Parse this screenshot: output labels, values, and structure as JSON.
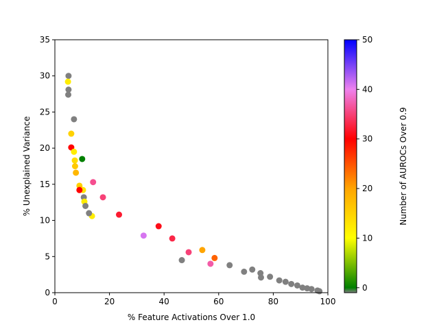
{
  "chart_data": {
    "type": "scatter",
    "xlabel": "% Feature Activations Over 1.0",
    "ylabel": "% Unexplained Variance",
    "xlim": [
      0,
      100
    ],
    "ylim": [
      0,
      35
    ],
    "xticks": [
      "0",
      "20",
      "40",
      "60",
      "80",
      "100"
    ],
    "yticks": [
      "0",
      "5",
      "10",
      "15",
      "20",
      "25",
      "30",
      "35"
    ],
    "grid": false,
    "colorbar": {
      "label": "Number of AUROCs Over 0.9",
      "range": [
        -1,
        50
      ],
      "ticks": [
        "0",
        "10",
        "20",
        "30",
        "40",
        "50"
      ],
      "stops": [
        {
          "value": -1,
          "color": "#808080"
        },
        {
          "value": 0,
          "color": "#008000"
        },
        {
          "value": 10,
          "color": "#ffff00"
        },
        {
          "value": 20,
          "color": "#ffa500"
        },
        {
          "value": 30,
          "color": "#ff0000"
        },
        {
          "value": 40,
          "color": "#ee82ee"
        },
        {
          "value": 50,
          "color": "#0000ff"
        }
      ]
    },
    "points": [
      {
        "x": 5.0,
        "y": 30.0,
        "c": -1
      },
      {
        "x": 5.0,
        "y": 28.1,
        "c": -1
      },
      {
        "x": 4.9,
        "y": 27.4,
        "c": -1
      },
      {
        "x": 4.8,
        "y": 29.2,
        "c": 12
      },
      {
        "x": 7.0,
        "y": 24.0,
        "c": -1
      },
      {
        "x": 6.0,
        "y": 22.0,
        "c": 15
      },
      {
        "x": 6.0,
        "y": 20.1,
        "c": 30
      },
      {
        "x": 7.0,
        "y": 19.5,
        "c": 12
      },
      {
        "x": 7.3,
        "y": 18.3,
        "c": 14
      },
      {
        "x": 10.0,
        "y": 18.5,
        "c": 0
      },
      {
        "x": 7.4,
        "y": 17.5,
        "c": 16
      },
      {
        "x": 7.7,
        "y": 16.6,
        "c": 18
      },
      {
        "x": 14.0,
        "y": 15.3,
        "c": 36
      },
      {
        "x": 9.0,
        "y": 14.8,
        "c": 15
      },
      {
        "x": 9.2,
        "y": 14.4,
        "c": 17
      },
      {
        "x": 10.3,
        "y": 14.2,
        "c": 13
      },
      {
        "x": 9.0,
        "y": 14.2,
        "c": 30
      },
      {
        "x": 17.6,
        "y": 13.2,
        "c": 35
      },
      {
        "x": 10.6,
        "y": 13.2,
        "c": -1
      },
      {
        "x": 10.8,
        "y": 12.6,
        "c": 12
      },
      {
        "x": 11.2,
        "y": 12.0,
        "c": -1
      },
      {
        "x": 13.6,
        "y": 10.6,
        "c": 12
      },
      {
        "x": 12.5,
        "y": 11.0,
        "c": -1
      },
      {
        "x": 23.5,
        "y": 10.8,
        "c": 32
      },
      {
        "x": 38.0,
        "y": 9.2,
        "c": 31
      },
      {
        "x": 32.5,
        "y": 7.9,
        "c": 41
      },
      {
        "x": 43.0,
        "y": 7.5,
        "c": 33
      },
      {
        "x": 49.0,
        "y": 5.6,
        "c": 35
      },
      {
        "x": 54.0,
        "y": 5.9,
        "c": 20
      },
      {
        "x": 58.5,
        "y": 4.8,
        "c": 24
      },
      {
        "x": 46.5,
        "y": 4.5,
        "c": -1
      },
      {
        "x": 57.0,
        "y": 4.0,
        "c": 37
      },
      {
        "x": 64.0,
        "y": 3.8,
        "c": -1
      },
      {
        "x": 69.3,
        "y": 2.9,
        "c": -1
      },
      {
        "x": 72.3,
        "y": 3.2,
        "c": -1
      },
      {
        "x": 75.3,
        "y": 2.7,
        "c": -1
      },
      {
        "x": 75.5,
        "y": 2.1,
        "c": -1
      },
      {
        "x": 78.8,
        "y": 2.2,
        "c": -1
      },
      {
        "x": 82.2,
        "y": 1.7,
        "c": -1
      },
      {
        "x": 84.5,
        "y": 1.5,
        "c": -1
      },
      {
        "x": 86.6,
        "y": 1.2,
        "c": -1
      },
      {
        "x": 88.8,
        "y": 1.0,
        "c": -1
      },
      {
        "x": 90.7,
        "y": 0.7,
        "c": -1
      },
      {
        "x": 92.4,
        "y": 0.6,
        "c": -1
      },
      {
        "x": 94.0,
        "y": 0.5,
        "c": -1
      },
      {
        "x": 96.2,
        "y": 0.3,
        "c": -1
      },
      {
        "x": 96.9,
        "y": 0.2,
        "c": -1
      }
    ]
  }
}
